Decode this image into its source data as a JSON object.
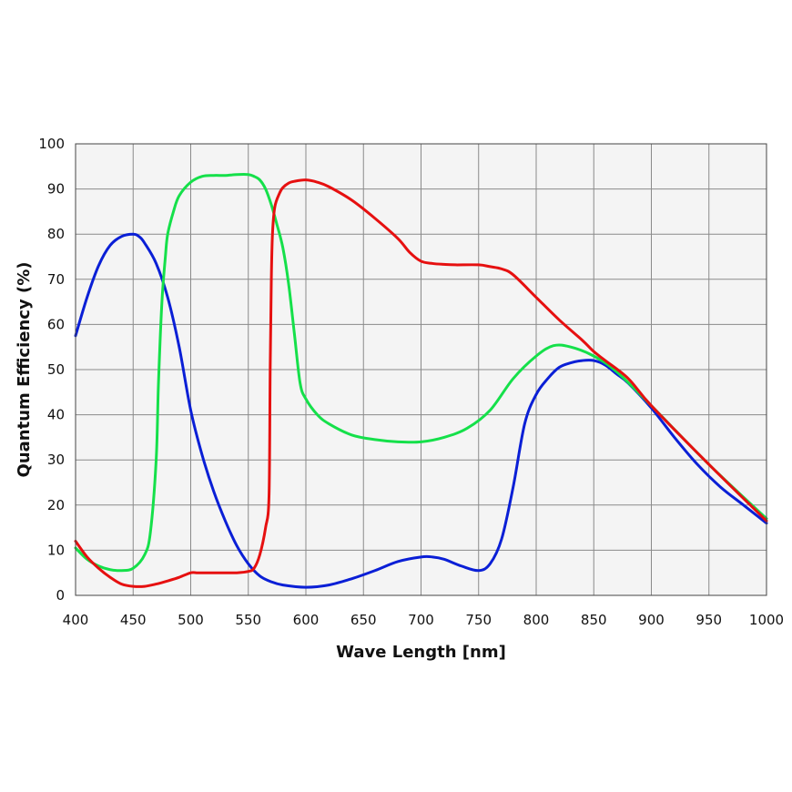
{
  "chart_data": {
    "type": "line",
    "title": "",
    "xlabel": "Wave Length [nm]",
    "ylabel": "Quantum Efficiency (%)",
    "xlim": [
      400,
      1000
    ],
    "ylim": [
      0,
      100
    ],
    "x_ticks": [
      400,
      450,
      500,
      550,
      600,
      650,
      700,
      750,
      800,
      850,
      900,
      950,
      1000
    ],
    "y_ticks": [
      0,
      10,
      20,
      30,
      40,
      50,
      60,
      70,
      80,
      90,
      100
    ],
    "grid": true,
    "legend": "none",
    "background": "#f4f4f4",
    "series": [
      {
        "color": "#0a1fd6",
        "x": [
          400,
          410,
          420,
          430,
          440,
          450,
          455,
          460,
          470,
          480,
          490,
          500,
          510,
          520,
          530,
          540,
          550,
          560,
          570,
          580,
          600,
          620,
          640,
          660,
          680,
          700,
          710,
          720,
          735,
          750,
          760,
          770,
          780,
          790,
          800,
          810,
          820,
          830,
          840,
          850,
          860,
          870,
          880,
          900,
          920,
          940,
          960,
          980,
          1000
        ],
        "y": [
          57.5,
          66,
          73,
          77.5,
          79.5,
          80,
          79.5,
          78,
          73.5,
          66,
          55,
          41,
          31,
          23,
          16.5,
          11,
          7,
          4.3,
          3,
          2.3,
          1.8,
          2.3,
          3.7,
          5.5,
          7.5,
          8.5,
          8.5,
          8,
          6.5,
          5.5,
          7,
          12.5,
          24,
          38,
          44.5,
          48,
          50.5,
          51.5,
          52,
          52,
          51,
          49,
          47,
          41.5,
          35,
          29,
          24,
          20,
          16
        ]
      },
      {
        "color": "#15e04a",
        "x": [
          400,
          410,
          420,
          430,
          440,
          450,
          460,
          465,
          470,
          472,
          475,
          478,
          480,
          485,
          490,
          500,
          510,
          520,
          530,
          540,
          550,
          555,
          560,
          565,
          570,
          575,
          580,
          585,
          590,
          595,
          600,
          610,
          620,
          640,
          660,
          680,
          700,
          720,
          740,
          760,
          780,
          800,
          815,
          830,
          850,
          870,
          900,
          950,
          1000
        ],
        "y": [
          10.5,
          8,
          6.5,
          5.7,
          5.5,
          6,
          9,
          14,
          30,
          47,
          65,
          75,
          80,
          85,
          88.5,
          91.5,
          92.8,
          93,
          93,
          93.2,
          93.2,
          92.8,
          92,
          90,
          86.5,
          82,
          77,
          69,
          58,
          47,
          43.5,
          40,
          38,
          35.5,
          34.5,
          34,
          34,
          35,
          37,
          41,
          48,
          53,
          55.3,
          55,
          53,
          49.5,
          42,
          29,
          17
        ]
      },
      {
        "color": "#e61010",
        "x": [
          400,
          410,
          420,
          430,
          440,
          450,
          460,
          470,
          480,
          490,
          500,
          505,
          510,
          520,
          530,
          540,
          550,
          555,
          560,
          565,
          568,
          569,
          570,
          571,
          573,
          577,
          580,
          585,
          590,
          600,
          610,
          620,
          640,
          660,
          680,
          690,
          700,
          710,
          720,
          730,
          750,
          760,
          770,
          780,
          800,
          820,
          840,
          850,
          860,
          880,
          900,
          950,
          1000
        ],
        "y": [
          12,
          8.5,
          6,
          4,
          2.5,
          2,
          2,
          2.5,
          3.2,
          4,
          5,
          5,
          5,
          5,
          5,
          5,
          5.3,
          6,
          9,
          15,
          22,
          50,
          70,
          80,
          86,
          89,
          90.3,
          91.3,
          91.7,
          92,
          91.5,
          90.5,
          87.5,
          83.5,
          79,
          76,
          74,
          73.5,
          73.3,
          73.2,
          73.2,
          72.8,
          72.3,
          71,
          66,
          61,
          56.5,
          54,
          52,
          48,
          42,
          29,
          16.5
        ]
      }
    ]
  }
}
